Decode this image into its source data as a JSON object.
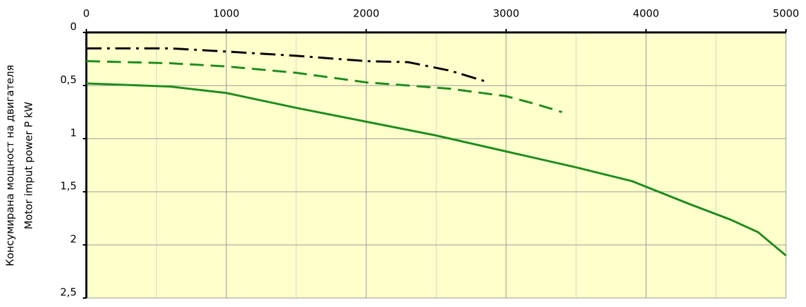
{
  "chart_data": {
    "type": "line",
    "ylabel": [
      "Консумирана мощност на двигателя",
      "Motor imput power P kW"
    ],
    "xlim": [
      0,
      5000
    ],
    "xticks": [
      0,
      1000,
      2000,
      3000,
      4000,
      5000
    ],
    "xminorticks": [
      500,
      1500,
      2500,
      3500,
      4500
    ],
    "ylim": [
      0,
      2.5
    ],
    "y_inverted": true,
    "yticks": [
      0,
      {
        "value": 0.5,
        "label": "0,5"
      },
      1,
      {
        "value": 1.5,
        "label": "1,5"
      },
      2,
      {
        "value": 2.5,
        "label": "2,5"
      }
    ],
    "grid": true,
    "background": "#ffffcc",
    "series": [
      {
        "color": "#000000",
        "dash": "dash-dot",
        "x": [
          0,
          600,
          1000,
          1500,
          2000,
          2300,
          2600,
          2850
        ],
        "values": [
          0.15,
          0.15,
          0.18,
          0.22,
          0.27,
          0.28,
          0.36,
          0.46
        ]
      },
      {
        "color": "#1e8c1e",
        "dash": "dashed",
        "x": [
          0,
          600,
          1000,
          1500,
          2000,
          2600,
          3000,
          3200,
          3400
        ],
        "values": [
          0.27,
          0.29,
          0.32,
          0.38,
          0.47,
          0.53,
          0.6,
          0.67,
          0.75
        ]
      },
      {
        "color": "#1e8c1e",
        "dash": "solid",
        "x": [
          0,
          600,
          1000,
          1500,
          2000,
          2500,
          3000,
          3500,
          3900,
          4300,
          4600,
          4800,
          5000
        ],
        "values": [
          0.48,
          0.51,
          0.57,
          0.71,
          0.84,
          0.97,
          1.12,
          1.27,
          1.4,
          1.61,
          1.76,
          1.88,
          2.1
        ]
      }
    ]
  }
}
